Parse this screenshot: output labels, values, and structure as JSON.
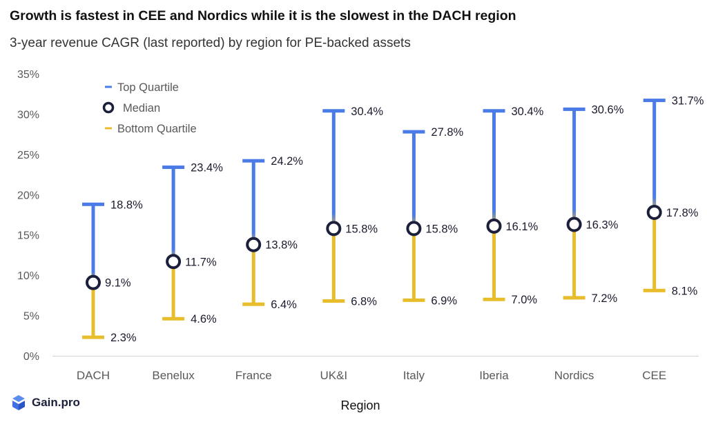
{
  "title": "Growth is fastest in CEE and Nordics while it is the slowest in the DACH region",
  "subtitle": "3-year revenue CAGR (last reported) by region for PE-backed assets",
  "logo_text": "Gain.pro",
  "colors": {
    "top": "#4a7be6",
    "bottom": "#e8bd2c",
    "median": "#1b1f3b"
  },
  "chart_data": {
    "type": "range",
    "xlabel": "Region",
    "ylabel": "",
    "ylim": [
      0,
      35
    ],
    "yticks": [
      "0%",
      "5%",
      "10%",
      "15%",
      "20%",
      "25%",
      "30%",
      "35%"
    ],
    "grid": false,
    "legend": [
      "Top Quartile",
      "Median",
      "Bottom Quartile"
    ],
    "legend_position": "top-left",
    "categories": [
      "DACH",
      "Benelux",
      "France",
      "UK&I",
      "Italy",
      "Iberia",
      "Nordics",
      "CEE"
    ],
    "series": [
      {
        "name": "Top Quartile",
        "values": [
          18.8,
          23.4,
          24.2,
          30.4,
          27.8,
          30.4,
          30.6,
          31.7
        ],
        "labels": [
          "18.8%",
          "23.4%",
          "24.2%",
          "30.4%",
          "27.8%",
          "30.4%",
          "30.6%",
          "31.7%"
        ]
      },
      {
        "name": "Median",
        "values": [
          9.1,
          11.7,
          13.8,
          15.8,
          15.8,
          16.1,
          16.3,
          17.8
        ],
        "labels": [
          "9.1%",
          "11.7%",
          "13.8%",
          "15.8%",
          "15.8%",
          "16.1%",
          "16.3%",
          "17.8%"
        ]
      },
      {
        "name": "Bottom Quartile",
        "values": [
          2.3,
          4.6,
          6.4,
          6.8,
          6.9,
          7.0,
          7.2,
          8.1
        ],
        "labels": [
          "2.3%",
          "4.6%",
          "6.4%",
          "6.8%",
          "6.9%",
          "7.0%",
          "7.2%",
          "8.1%"
        ]
      }
    ]
  }
}
